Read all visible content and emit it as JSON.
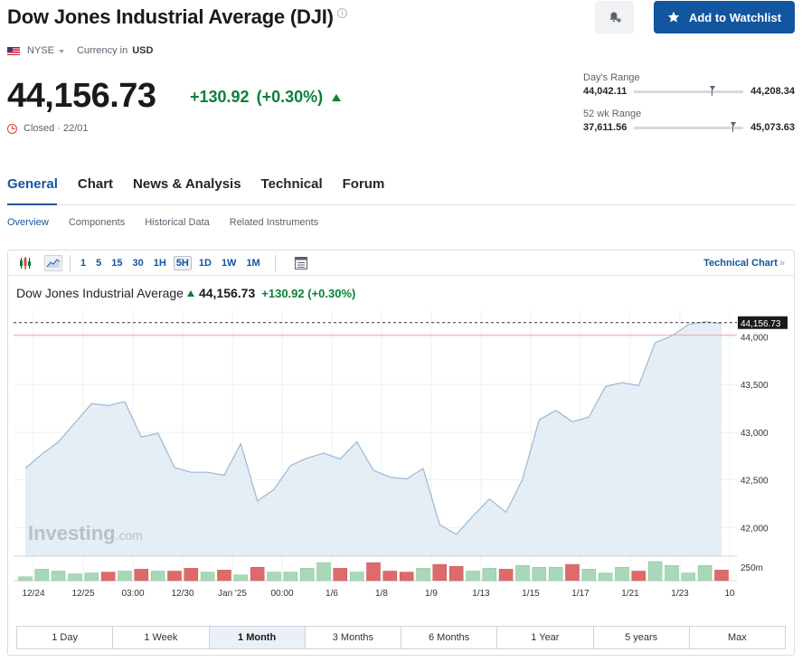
{
  "header": {
    "title": "Dow Jones Industrial Average (DJI)",
    "add_watchlist_label": "Add to Watchlist"
  },
  "meta": {
    "exchange": "NYSE",
    "currency_label": "Currency in",
    "currency": "USD"
  },
  "quote": {
    "price": "44,156.73",
    "change": "+130.92",
    "change_pct": "(+0.30%)",
    "status": "Closed · 22/01"
  },
  "ranges": {
    "day": {
      "label": "Day's Range",
      "low": "44,042.11",
      "high": "44,208.34",
      "position": 0.69
    },
    "week52": {
      "label": "52 wk Range",
      "low": "37,611.56",
      "high": "45,073.63",
      "position": 0.88
    }
  },
  "tabs": [
    "General",
    "Chart",
    "News & Analysis",
    "Technical",
    "Forum"
  ],
  "subtabs": [
    "Overview",
    "Components",
    "Historical Data",
    "Related Instruments"
  ],
  "toolbar": {
    "timeframes": [
      "1",
      "5",
      "15",
      "30",
      "1H",
      "5H",
      "1D",
      "1W",
      "1M"
    ],
    "active_timeframe": "5H",
    "technical_chart_label": "Technical Chart",
    "technical_chart_arrow": "»"
  },
  "chart_header": {
    "name": "Dow Jones Industrial Average",
    "price": "44,156.73",
    "change": "+130.92",
    "change_pct": "(+0.30%)"
  },
  "watermark": {
    "brand": "Investing",
    "suffix": ".com"
  },
  "periods": [
    "1 Day",
    "1 Week",
    "1 Month",
    "3 Months",
    "6 Months",
    "1 Year",
    "5 years",
    "Max"
  ],
  "active_period": "1 Month",
  "colors": {
    "accent": "#1256a0",
    "positive": "#0a8038",
    "negative": "#d9453a",
    "area_fill": "#dfe9f3",
    "area_line": "#9ab9d6",
    "volume_up": "#a9d8b8",
    "volume_down": "#de6b6b"
  },
  "chart_data": {
    "type": "area",
    "title": "Dow Jones Industrial Average",
    "x_tick_labels": [
      "12/24",
      "12/25",
      "03:00",
      "12/30",
      "Jan '25",
      "00:00",
      "1/6",
      "1/8",
      "1/9",
      "1/13",
      "1/15",
      "1/17",
      "1/21",
      "1/23",
      "10"
    ],
    "y_tick_labels": [
      "44,000",
      "43,500",
      "43,000",
      "42,500",
      "42,000",
      "250m"
    ],
    "ylim": [
      41700,
      44280
    ],
    "last_price_label": "44,156.73",
    "reference_level": 44000,
    "grid": true,
    "series": [
      {
        "values": [
          42620,
          42770,
          42900,
          43100,
          43300,
          43280,
          43320,
          42950,
          42990,
          42630,
          42580,
          42580,
          42550,
          42880,
          42280,
          42400,
          42650,
          42730,
          42780,
          42720,
          42900,
          42600,
          42530,
          42510,
          42620,
          42030,
          41930,
          42120,
          42300,
          42160,
          42510,
          43130,
          43230,
          43110,
          43160,
          43480,
          43520,
          43490,
          43940,
          44010,
          44130,
          44160,
          44140
        ]
      }
    ],
    "volume": {
      "values": [
        4,
        12,
        10,
        7,
        8,
        9,
        10,
        12,
        10,
        10,
        13,
        9,
        11,
        6,
        14,
        9,
        9,
        13,
        19,
        13,
        9,
        19,
        10,
        9,
        13,
        17,
        15,
        10,
        13,
        12,
        16,
        14,
        14,
        17,
        12,
        8,
        14,
        10,
        20,
        16,
        8,
        16,
        11
      ],
      "direction": [
        "up",
        "up",
        "up",
        "up",
        "up",
        "down",
        "up",
        "down",
        "up",
        "down",
        "down",
        "up",
        "down",
        "up",
        "down",
        "up",
        "up",
        "up",
        "up",
        "down",
        "up",
        "down",
        "down",
        "down",
        "up",
        "down",
        "down",
        "up",
        "up",
        "down",
        "up",
        "up",
        "up",
        "down",
        "up",
        "up",
        "up",
        "down",
        "up",
        "up",
        "up",
        "up",
        "down"
      ]
    }
  }
}
